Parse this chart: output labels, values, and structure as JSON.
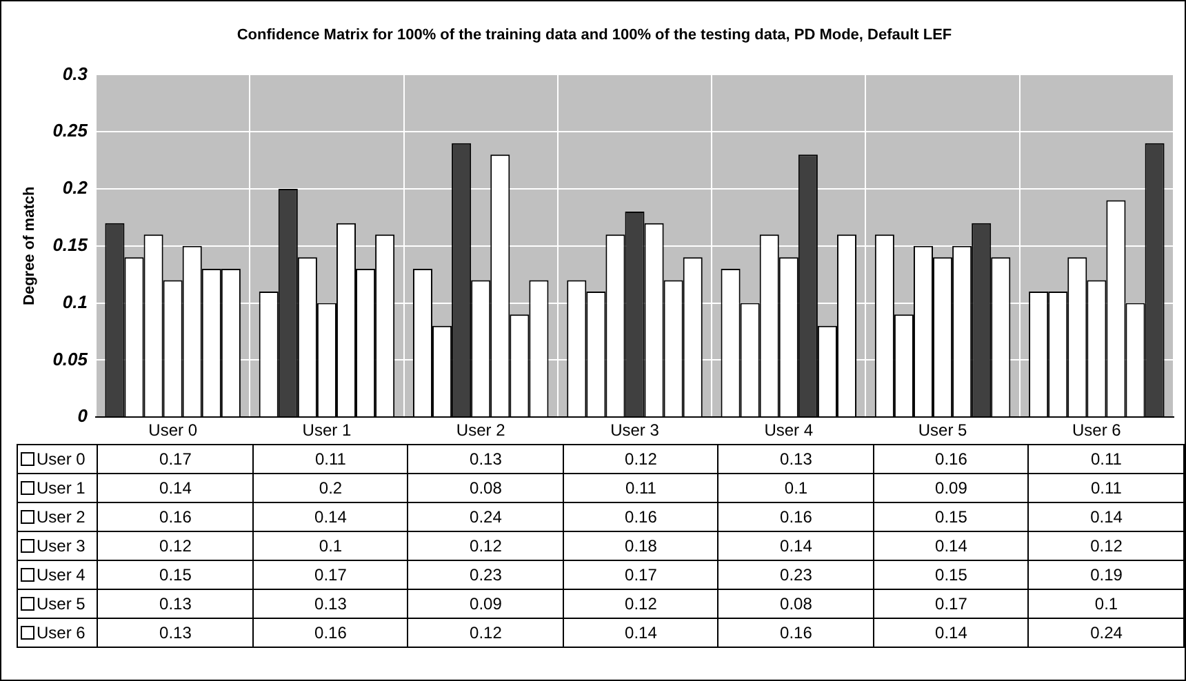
{
  "chart_data": {
    "type": "bar",
    "title": "Confidence Matrix for 100% of the training data and 100% of the testing data, PD Mode, Default LEF",
    "ylabel": "Degree of match",
    "categories": [
      "User 0",
      "User 1",
      "User 2",
      "User 3",
      "User 4",
      "User 5",
      "User 6"
    ],
    "series": [
      {
        "name": "User 0",
        "colors": [
          "#404040",
          "#ffffff",
          "#ffffff",
          "#ffffff",
          "#ffffff",
          "#ffffff",
          "#ffffff"
        ],
        "values": [
          0.17,
          0.11,
          0.13,
          0.12,
          0.13,
          0.16,
          0.11
        ]
      },
      {
        "name": "User 1",
        "colors": [
          "#ffffff",
          "#404040",
          "#ffffff",
          "#ffffff",
          "#ffffff",
          "#ffffff",
          "#ffffff"
        ],
        "values": [
          0.14,
          0.2,
          0.08,
          0.11,
          0.1,
          0.09,
          0.11
        ]
      },
      {
        "name": "User 2",
        "colors": [
          "#ffffff",
          "#ffffff",
          "#404040",
          "#ffffff",
          "#ffffff",
          "#ffffff",
          "#ffffff"
        ],
        "values": [
          0.16,
          0.14,
          0.24,
          0.16,
          0.16,
          0.15,
          0.14
        ]
      },
      {
        "name": "User 3",
        "colors": [
          "#ffffff",
          "#ffffff",
          "#ffffff",
          "#404040",
          "#ffffff",
          "#ffffff",
          "#ffffff"
        ],
        "values": [
          0.12,
          0.1,
          0.12,
          0.18,
          0.14,
          0.14,
          0.12
        ]
      },
      {
        "name": "User 4",
        "colors": [
          "#ffffff",
          "#ffffff",
          "#ffffff",
          "#ffffff",
          "#404040",
          "#ffffff",
          "#ffffff"
        ],
        "values": [
          0.15,
          0.17,
          0.23,
          0.17,
          0.23,
          0.15,
          0.19
        ]
      },
      {
        "name": "User 5",
        "colors": [
          "#ffffff",
          "#ffffff",
          "#ffffff",
          "#ffffff",
          "#ffffff",
          "#404040",
          "#ffffff"
        ],
        "values": [
          0.13,
          0.13,
          0.09,
          0.12,
          0.08,
          0.17,
          0.1
        ]
      },
      {
        "name": "User 6",
        "colors": [
          "#ffffff",
          "#ffffff",
          "#ffffff",
          "#ffffff",
          "#ffffff",
          "#ffffff",
          "#404040"
        ],
        "values": [
          0.13,
          0.16,
          0.12,
          0.14,
          0.16,
          0.14,
          0.24
        ]
      }
    ],
    "ylim": [
      0,
      0.3
    ],
    "yticks": [
      0,
      0.05,
      0.1,
      0.15,
      0.2,
      0.25,
      0.3
    ],
    "grid": true,
    "legend": "bottom",
    "data_labels": true
  }
}
